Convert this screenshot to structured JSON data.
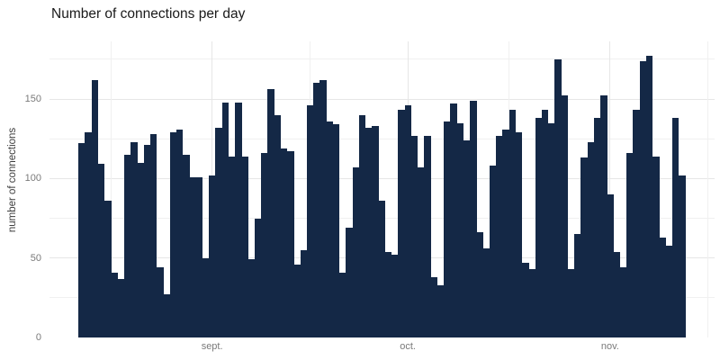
{
  "chart_data": {
    "type": "bar",
    "title": "Number of connections per day",
    "xlabel": "",
    "ylabel": "number of connections",
    "x_axis": {
      "tick_labels": [
        "sept.",
        "oct.",
        "nov."
      ],
      "tick_bar_indices": [
        20,
        50,
        81
      ],
      "date_span": "daily bars, Aug 12 through Nov 12",
      "n_bars": 93
    },
    "y_ticks": [
      0,
      50,
      100,
      150
    ],
    "y_minor_ticks": [
      25,
      75,
      125,
      175
    ],
    "ylim": [
      0,
      186
    ],
    "grid": "major and minor, horizontal and vertical, light gray on white",
    "legend": "none",
    "values": [
      122,
      129,
      162,
      109,
      86,
      41,
      37,
      115,
      123,
      110,
      121,
      128,
      44,
      27,
      129,
      131,
      115,
      101,
      101,
      50,
      102,
      132,
      148,
      114,
      148,
      114,
      49,
      75,
      116,
      156,
      140,
      119,
      117,
      46,
      55,
      146,
      160,
      162,
      136,
      134,
      41,
      69,
      107,
      140,
      132,
      133,
      86,
      54,
      52,
      143,
      146,
      127,
      107,
      127,
      38,
      33,
      136,
      147,
      135,
      124,
      149,
      66,
      56,
      108,
      127,
      131,
      143,
      129,
      47,
      43,
      138,
      143,
      135,
      175,
      152,
      43,
      65,
      113,
      123,
      138,
      152,
      90,
      54,
      44,
      116,
      143,
      174,
      177,
      114,
      63,
      58,
      138,
      102
    ]
  },
  "colors": {
    "bar": "#142846",
    "grid_major": "#e6e6e6",
    "grid_minor": "#f0f0f0",
    "tick_text": "#7a7a7a",
    "title_text": "#1a1a1a",
    "axis_title_text": "#3c3c3c",
    "background": "#ffffff"
  }
}
